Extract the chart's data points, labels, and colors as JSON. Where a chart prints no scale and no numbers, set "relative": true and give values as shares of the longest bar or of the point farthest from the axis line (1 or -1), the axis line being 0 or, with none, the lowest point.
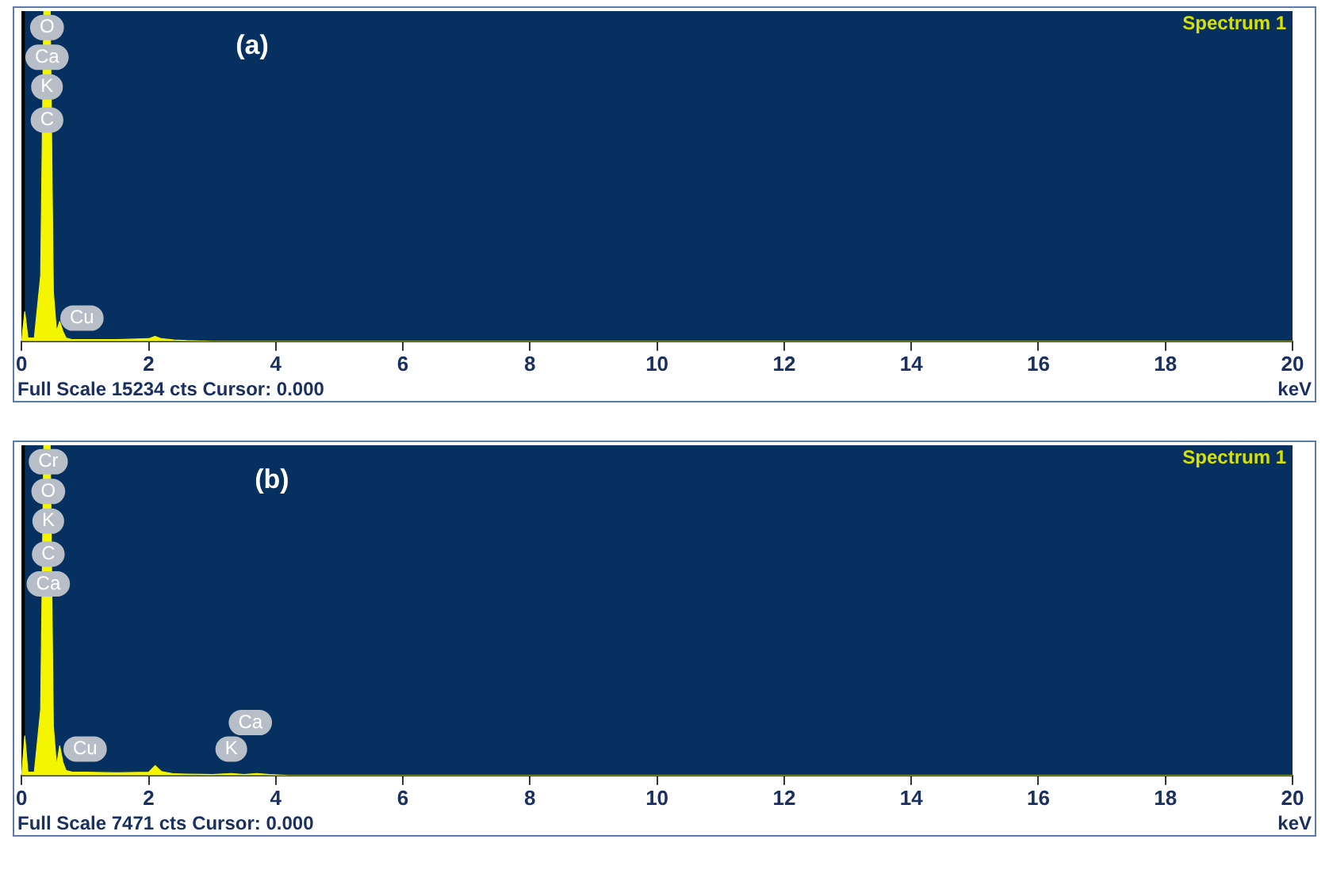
{
  "chart_data": [
    {
      "type": "area",
      "title": "(a)",
      "xlabel": "keV",
      "relative": true,
      "xlim": [
        0,
        20
      ],
      "xticks": [
        0,
        2,
        4,
        6,
        8,
        10,
        12,
        14,
        16,
        18,
        20
      ],
      "grid": false,
      "legend": false,
      "marker": "none",
      "x": [
        0,
        0.05,
        0.1,
        0.2,
        0.3,
        0.35,
        0.4,
        0.45,
        0.5,
        0.55,
        0.6,
        0.65,
        0.7,
        0.8,
        1.0,
        1.5,
        2.0,
        2.1,
        2.2,
        2.4,
        2.6,
        3,
        20
      ],
      "series": [
        {
          "color": "#f5f500",
          "values": [
            0,
            0.09,
            0.01,
            0.01,
            0.2,
            1,
            1,
            1,
            0.15,
            0.03,
            0.06,
            0.03,
            0.01,
            0.005,
            0.005,
            0.005,
            0.008,
            0.015,
            0.008,
            0.004,
            0.002,
            0,
            0
          ]
        }
      ],
      "ref_lines": [
        {
          "axis": "x",
          "value": 0,
          "color": "#000000"
        }
      ],
      "annotations": [
        "Spectrum 1",
        "Full Scale 15234 cts Cursor: 0.000",
        {
          "text": "O",
          "x": 0.4,
          "y": 0.95
        },
        {
          "text": "Ca",
          "x": 0.4,
          "y": 0.86
        },
        {
          "text": "K",
          "x": 0.4,
          "y": 0.77
        },
        {
          "text": "C",
          "x": 0.4,
          "y": 0.67
        },
        {
          "text": "Cu",
          "x": 0.95,
          "y": 0.07
        }
      ]
    },
    {
      "type": "area",
      "title": "(b)",
      "xlabel": "keV",
      "relative": true,
      "xlim": [
        0,
        20
      ],
      "xticks": [
        0,
        2,
        4,
        6,
        8,
        10,
        12,
        14,
        16,
        18,
        20
      ],
      "grid": false,
      "legend": false,
      "marker": "none",
      "x": [
        0,
        0.05,
        0.1,
        0.2,
        0.3,
        0.35,
        0.4,
        0.45,
        0.5,
        0.55,
        0.6,
        0.65,
        0.7,
        0.8,
        1.0,
        1.5,
        2.0,
        2.1,
        2.2,
        2.4,
        2.6,
        3,
        3.3,
        3.5,
        3.7,
        3.9,
        4.2,
        20
      ],
      "series": [
        {
          "color": "#f5f500",
          "values": [
            0,
            0.12,
            0.01,
            0.01,
            0.2,
            1,
            1,
            1,
            0.15,
            0.03,
            0.09,
            0.04,
            0.015,
            0.01,
            0.01,
            0.008,
            0.01,
            0.03,
            0.012,
            0.005,
            0.004,
            0.003,
            0.006,
            0.003,
            0.006,
            0.003,
            0,
            0
          ]
        }
      ],
      "ref_lines": [
        {
          "axis": "x",
          "value": 0,
          "color": "#000000"
        }
      ],
      "annotations": [
        "Spectrum 1",
        "Full Scale 7471 cts Cursor: 0.000",
        {
          "text": "Cr",
          "x": 0.42,
          "y": 0.95
        },
        {
          "text": "O",
          "x": 0.42,
          "y": 0.86
        },
        {
          "text": "K",
          "x": 0.42,
          "y": 0.77
        },
        {
          "text": "C",
          "x": 0.42,
          "y": 0.67
        },
        {
          "text": "Ca",
          "x": 0.42,
          "y": 0.58
        },
        {
          "text": "Cu",
          "x": 1.0,
          "y": 0.08
        },
        {
          "text": "K",
          "x": 3.3,
          "y": 0.08
        },
        {
          "text": "Ca",
          "x": 3.6,
          "y": 0.16
        }
      ]
    }
  ]
}
